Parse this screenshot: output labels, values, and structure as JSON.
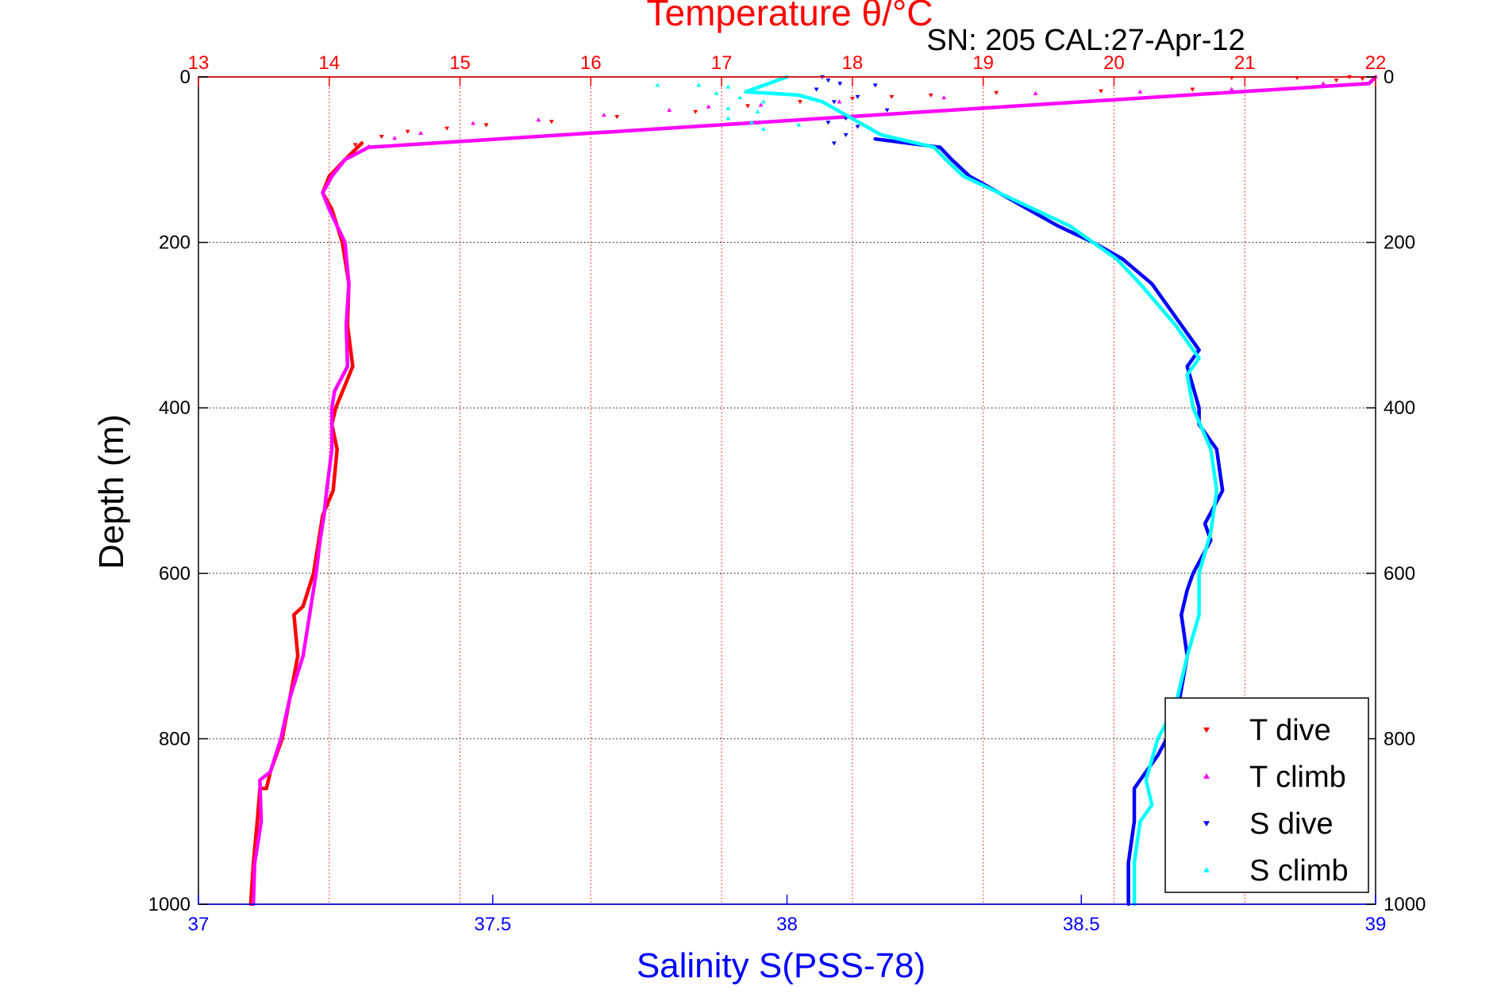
{
  "header_text": "SN: 205  CAL:27-Apr-12",
  "chart_data": {
    "type": "scatter",
    "title": "Temperature θ/°C",
    "top_axis": {
      "label": "Temperature θ/°C",
      "range": [
        13,
        22
      ],
      "ticks": [
        "13",
        "14",
        "15",
        "16",
        "17",
        "18",
        "19",
        "20",
        "21",
        "22"
      ],
      "color": "#ff0000",
      "grid": true
    },
    "bottom_axis": {
      "label": "Salinity S(PSS-78)",
      "range": [
        37,
        39
      ],
      "ticks": [
        "37",
        "37.5",
        "38",
        "38.5",
        "39"
      ],
      "color": "#0000ff"
    },
    "y_axis": {
      "label": "Depth (m)",
      "range": [
        0,
        1000
      ],
      "reversed": true,
      "ticks": [
        "0",
        "200",
        "400",
        "600",
        "800",
        "1000"
      ],
      "grid": true
    },
    "legend_position": "bottom-right",
    "series": [
      {
        "name": "T dive",
        "axis": "temperature",
        "color": "#ff0000",
        "marker": "triangle-down",
        "scatter": [
          [
            21.8,
            0
          ],
          [
            21.4,
            1
          ],
          [
            20.9,
            1
          ],
          [
            21.9,
            2
          ],
          [
            21.7,
            4
          ],
          [
            20.6,
            15
          ],
          [
            19.9,
            17
          ],
          [
            19.1,
            19
          ],
          [
            18.6,
            22
          ],
          [
            18.3,
            24
          ],
          [
            18.0,
            26
          ],
          [
            17.6,
            30
          ],
          [
            17.2,
            35
          ],
          [
            16.8,
            42
          ],
          [
            16.2,
            48
          ],
          [
            15.7,
            54
          ],
          [
            15.2,
            58
          ],
          [
            14.9,
            62
          ],
          [
            14.6,
            66
          ],
          [
            14.4,
            72
          ],
          [
            14.2,
            82
          ]
        ],
        "profile": [
          [
            14.25,
            80
          ],
          [
            14.12,
            100
          ],
          [
            14.0,
            120
          ],
          [
            13.95,
            140
          ],
          [
            14.02,
            160
          ],
          [
            14.1,
            200
          ],
          [
            14.15,
            250
          ],
          [
            14.14,
            300
          ],
          [
            14.18,
            350
          ],
          [
            14.05,
            400
          ],
          [
            14.02,
            420
          ],
          [
            14.06,
            450
          ],
          [
            14.03,
            500
          ],
          [
            13.95,
            530
          ],
          [
            13.92,
            560
          ],
          [
            13.88,
            600
          ],
          [
            13.8,
            640
          ],
          [
            13.73,
            650
          ],
          [
            13.76,
            700
          ],
          [
            13.7,
            750
          ],
          [
            13.64,
            800
          ],
          [
            13.55,
            840
          ],
          [
            13.52,
            860
          ],
          [
            13.47,
            860
          ],
          [
            13.45,
            900
          ],
          [
            13.42,
            950
          ],
          [
            13.4,
            1000
          ]
        ]
      },
      {
        "name": "T climb",
        "axis": "temperature",
        "color": "#ff00ff",
        "marker": "triangle-up",
        "scatter": [
          [
            21.6,
            8
          ],
          [
            20.9,
            15
          ],
          [
            20.2,
            18
          ],
          [
            19.4,
            20
          ],
          [
            18.7,
            25
          ],
          [
            17.9,
            30
          ],
          [
            17.3,
            34
          ],
          [
            16.9,
            36
          ],
          [
            16.6,
            40
          ],
          [
            16.1,
            46
          ],
          [
            15.6,
            52
          ],
          [
            15.1,
            56
          ],
          [
            14.7,
            68
          ],
          [
            14.5,
            74
          ],
          [
            14.3,
            84
          ]
        ],
        "profile": [
          [
            22.0,
            0
          ],
          [
            21.95,
            8
          ],
          [
            14.3,
            85
          ],
          [
            14.12,
            100
          ],
          [
            14.02,
            120
          ],
          [
            13.95,
            140
          ],
          [
            14.0,
            160
          ],
          [
            14.12,
            200
          ],
          [
            14.15,
            250
          ],
          [
            14.13,
            300
          ],
          [
            14.14,
            350
          ],
          [
            14.04,
            380
          ],
          [
            14.02,
            400
          ],
          [
            14.02,
            450
          ],
          [
            13.98,
            500
          ],
          [
            13.96,
            530
          ],
          [
            13.93,
            560
          ],
          [
            13.9,
            600
          ],
          [
            13.85,
            650
          ],
          [
            13.8,
            700
          ],
          [
            13.7,
            750
          ],
          [
            13.63,
            800
          ],
          [
            13.55,
            840
          ],
          [
            13.47,
            850
          ],
          [
            13.48,
            900
          ],
          [
            13.43,
            950
          ],
          [
            13.42,
            1000
          ]
        ]
      },
      {
        "name": "S dive",
        "axis": "salinity",
        "color": "#0000ff",
        "marker": "triangle-down",
        "scatter": [
          [
            38.06,
            0
          ],
          [
            38.07,
            4
          ],
          [
            38.09,
            8
          ],
          [
            38.15,
            10
          ],
          [
            38.05,
            15
          ],
          [
            38.12,
            24
          ],
          [
            38.08,
            30
          ],
          [
            38.17,
            40
          ],
          [
            38.1,
            50
          ],
          [
            38.07,
            55
          ],
          [
            38.12,
            60
          ],
          [
            38.1,
            70
          ],
          [
            38.08,
            80
          ]
        ],
        "profile": [
          [
            38.15,
            75
          ],
          [
            38.26,
            85
          ],
          [
            38.28,
            100
          ],
          [
            38.31,
            120
          ],
          [
            38.36,
            140
          ],
          [
            38.41,
            160
          ],
          [
            38.46,
            180
          ],
          [
            38.52,
            200
          ],
          [
            38.57,
            220
          ],
          [
            38.62,
            250
          ],
          [
            38.67,
            300
          ],
          [
            38.7,
            330
          ],
          [
            38.68,
            350
          ],
          [
            38.7,
            400
          ],
          [
            38.7,
            420
          ],
          [
            38.73,
            450
          ],
          [
            38.74,
            500
          ],
          [
            38.71,
            540
          ],
          [
            38.72,
            560
          ],
          [
            38.69,
            600
          ],
          [
            38.68,
            620
          ],
          [
            38.67,
            650
          ],
          [
            38.68,
            700
          ],
          [
            38.67,
            740
          ],
          [
            38.66,
            780
          ],
          [
            38.63,
            820
          ],
          [
            38.61,
            840
          ],
          [
            38.59,
            860
          ],
          [
            38.59,
            900
          ],
          [
            38.58,
            950
          ],
          [
            38.58,
            1000
          ]
        ]
      },
      {
        "name": "S climb",
        "axis": "salinity",
        "color": "#00ffff",
        "marker": "triangle-up",
        "scatter": [
          [
            37.78,
            10
          ],
          [
            37.85,
            10
          ],
          [
            37.9,
            12
          ],
          [
            37.88,
            20
          ],
          [
            37.92,
            25
          ],
          [
            37.96,
            30
          ],
          [
            37.9,
            38
          ],
          [
            37.95,
            42
          ],
          [
            37.9,
            50
          ],
          [
            37.94,
            55
          ],
          [
            38.02,
            58
          ],
          [
            37.96,
            63
          ]
        ],
        "profile": [
          [
            38.0,
            0
          ],
          [
            37.98,
            5
          ],
          [
            37.93,
            18
          ],
          [
            38.02,
            22
          ],
          [
            38.06,
            30
          ],
          [
            38.11,
            50
          ],
          [
            38.16,
            70
          ],
          [
            38.25,
            85
          ],
          [
            38.27,
            100
          ],
          [
            38.3,
            120
          ],
          [
            38.36,
            140
          ],
          [
            38.42,
            160
          ],
          [
            38.48,
            180
          ],
          [
            38.52,
            200
          ],
          [
            38.56,
            220
          ],
          [
            38.6,
            250
          ],
          [
            38.66,
            300
          ],
          [
            38.7,
            340
          ],
          [
            38.68,
            360
          ],
          [
            38.69,
            400
          ],
          [
            38.72,
            450
          ],
          [
            38.73,
            500
          ],
          [
            38.72,
            550
          ],
          [
            38.7,
            600
          ],
          [
            38.7,
            650
          ],
          [
            38.68,
            700
          ],
          [
            38.66,
            760
          ],
          [
            38.63,
            800
          ],
          [
            38.61,
            850
          ],
          [
            38.62,
            880
          ],
          [
            38.6,
            900
          ],
          [
            38.59,
            950
          ],
          [
            38.59,
            1000
          ]
        ]
      }
    ]
  }
}
